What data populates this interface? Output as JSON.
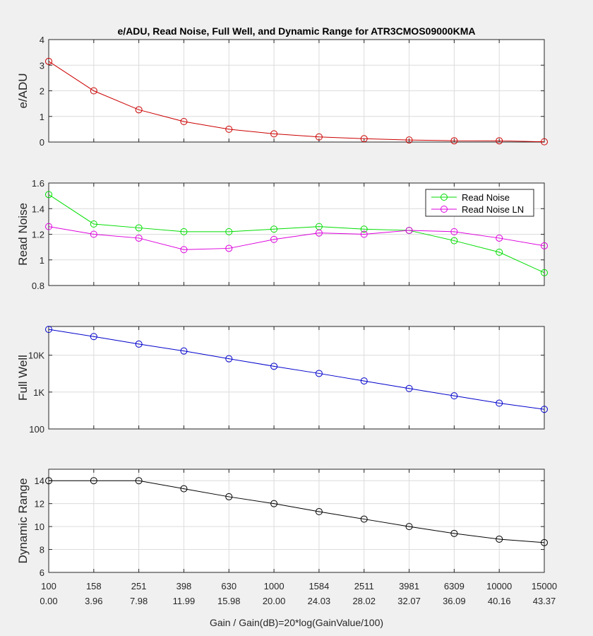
{
  "figure": {
    "title": "e/ADU, Read Noise, Full Well, and Dynamic Range for ATR3CMOS09000KMA",
    "xlabel": "Gain / Gain(dB)=20*log(GainValue/100)",
    "x_gain": [
      "100",
      "158",
      "251",
      "398",
      "630",
      "1000",
      "1584",
      "2511",
      "3981",
      "6309",
      "10000",
      "15000"
    ],
    "x_db": [
      "0.00",
      "3.96",
      "7.98",
      "11.99",
      "15.98",
      "20.00",
      "24.03",
      "28.02",
      "32.07",
      "36.09",
      "40.16",
      "43.37"
    ]
  },
  "colors": {
    "background": "#f0f0f0",
    "axes_bg": "#ffffff",
    "grid": "#dcdcdc",
    "axis": "#262626"
  },
  "chart_data": [
    {
      "type": "line",
      "ylabel": "e/ADU",
      "yscale": "linear",
      "ylim": [
        0,
        4
      ],
      "yticks": [
        0,
        1,
        2,
        3,
        4
      ],
      "yticklabels": [
        "0",
        "1",
        "2",
        "3",
        "4"
      ],
      "series": [
        {
          "name": "e/ADU",
          "color": "#cc0000",
          "values": [
            3.15,
            2.0,
            1.26,
            0.8,
            0.5,
            0.32,
            0.2,
            0.13,
            0.08,
            0.05,
            0.05,
            0.01
          ]
        }
      ]
    },
    {
      "type": "line",
      "ylabel": "Read Noise",
      "yscale": "linear",
      "ylim": [
        0.8,
        1.6
      ],
      "yticks": [
        0.8,
        1.0,
        1.2,
        1.4,
        1.6
      ],
      "yticklabels": [
        "0.8",
        "1",
        "1.2",
        "1.4",
        "1.6"
      ],
      "legend": "top-right",
      "series": [
        {
          "name": "Read Noise",
          "color": "#00dd00",
          "values": [
            1.51,
            1.28,
            1.25,
            1.22,
            1.22,
            1.24,
            1.26,
            1.24,
            1.23,
            1.15,
            1.06,
            0.9
          ]
        },
        {
          "name": "Read Noise LN",
          "color": "#dd00dd",
          "values": [
            1.26,
            1.2,
            1.17,
            1.08,
            1.09,
            1.16,
            1.21,
            1.2,
            1.23,
            1.22,
            1.17,
            1.11
          ]
        }
      ]
    },
    {
      "type": "line",
      "ylabel": "Full Well",
      "yscale": "log",
      "ylim": [
        100,
        60000
      ],
      "yticks": [
        100,
        1000,
        10000
      ],
      "yticklabels": [
        "100",
        "1K",
        "10K"
      ],
      "series": [
        {
          "name": "Full Well",
          "color": "#0000cc",
          "values": [
            50000,
            32000,
            20000,
            13000,
            8000,
            5000,
            3200,
            2000,
            1250,
            790,
            500,
            340
          ]
        }
      ]
    },
    {
      "type": "line",
      "ylabel": "Dynamic Range",
      "yscale": "linear",
      "ylim": [
        6,
        15
      ],
      "yticks": [
        6,
        8,
        10,
        12,
        14
      ],
      "yticklabels": [
        "6",
        "8",
        "10",
        "12",
        "14"
      ],
      "series": [
        {
          "name": "Dynamic Range",
          "color": "#000000",
          "values": [
            14.0,
            14.0,
            14.0,
            13.3,
            12.6,
            12.0,
            11.3,
            10.65,
            10.0,
            9.4,
            8.9,
            8.6
          ]
        }
      ]
    }
  ]
}
